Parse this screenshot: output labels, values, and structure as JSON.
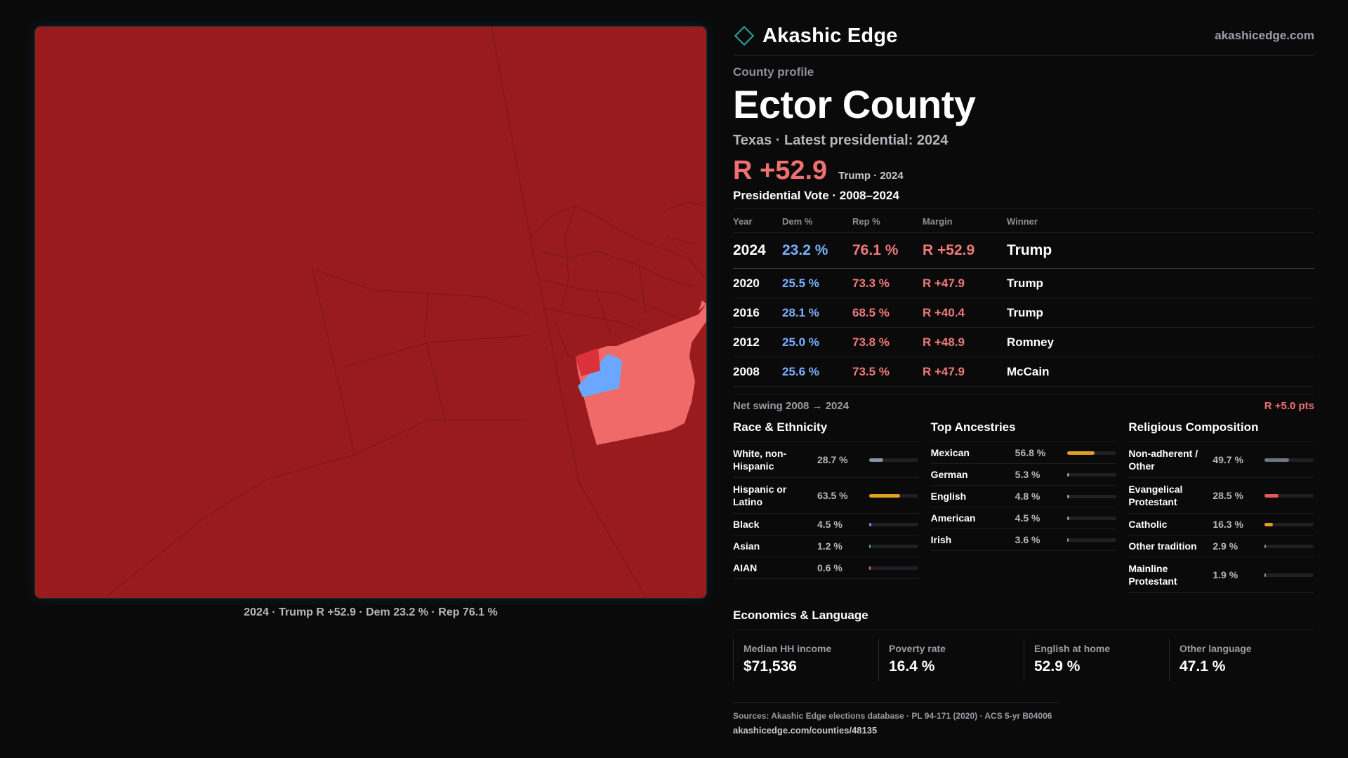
{
  "map": {
    "caption": "2024 · Trump R +52.9 · Dem 23.2 % · Rep 76.1 %",
    "colors": {
      "base": "#9a1b1e",
      "rep_light": "#f06a6a",
      "dem": "#6aa8ff",
      "rep_mid": "#d9323a",
      "boundary": "#7c1518"
    }
  },
  "brand": {
    "name": "Akashic Edge",
    "url": "akashicedge.com",
    "logo_icon": "diamond-icon"
  },
  "profile": {
    "eyebrow": "County profile",
    "title": "Ector County",
    "subline": "Texas · Latest presidential: 2024",
    "headline_margin": "R +52.9",
    "headline_note": "Trump · 2024"
  },
  "votes": {
    "heading": "Presidential Vote · 2008–2024",
    "headers": {
      "year": "Year",
      "dem": "Dem %",
      "rep": "Rep %",
      "margin": "Margin",
      "winner": "Winner"
    },
    "rows": [
      {
        "year": "2024",
        "dem": "23.2 %",
        "rep": "76.1 %",
        "margin": "R +52.9",
        "winner": "Trump"
      },
      {
        "year": "2020",
        "dem": "25.5 %",
        "rep": "73.3 %",
        "margin": "R +47.9",
        "winner": "Trump"
      },
      {
        "year": "2016",
        "dem": "28.1 %",
        "rep": "68.5 %",
        "margin": "R +40.4",
        "winner": "Trump"
      },
      {
        "year": "2012",
        "dem": "25.0 %",
        "rep": "73.8 %",
        "margin": "R +48.9",
        "winner": "Romney"
      },
      {
        "year": "2008",
        "dem": "25.6 %",
        "rep": "73.5 %",
        "margin": "R +47.9",
        "winner": "McCain"
      }
    ]
  },
  "swing": {
    "label": "Net swing 2008 → 2024",
    "value": "R +5.0 pts"
  },
  "race": {
    "title": "Race & Ethnicity",
    "items": [
      {
        "label": "White, non-Hispanic",
        "value": "28.7 %",
        "pct": 28.7,
        "color": "#8a93a6"
      },
      {
        "label": "Hispanic or Latino",
        "value": "63.5 %",
        "pct": 63.5,
        "color": "#e0a020"
      },
      {
        "label": "Black",
        "value": "4.5 %",
        "pct": 4.5,
        "color": "#8a7ee0"
      },
      {
        "label": "Asian",
        "value": "1.2 %",
        "pct": 1.2,
        "color": "#4ab0a8"
      },
      {
        "label": "AIAN",
        "value": "0.6 %",
        "pct": 0.6,
        "color": "#e07a40"
      }
    ]
  },
  "ancestry": {
    "title": "Top Ancestries",
    "items": [
      {
        "label": "Mexican",
        "value": "56.8 %",
        "pct": 56.8,
        "color": "#e0a020"
      },
      {
        "label": "German",
        "value": "5.3 %",
        "pct": 5.3,
        "color": "#8a93a6"
      },
      {
        "label": "English",
        "value": "4.8 %",
        "pct": 4.8,
        "color": "#8a93a6"
      },
      {
        "label": "American",
        "value": "4.5 %",
        "pct": 4.5,
        "color": "#8a93a6"
      },
      {
        "label": "Irish",
        "value": "3.6 %",
        "pct": 3.6,
        "color": "#8a93a6"
      }
    ]
  },
  "religion": {
    "title": "Religious Composition",
    "items": [
      {
        "label": "Non-adherent / Other",
        "value": "49.7 %",
        "pct": 49.7,
        "color": "#6e7686"
      },
      {
        "label": "Evangelical Protestant",
        "value": "28.5 %",
        "pct": 28.5,
        "color": "#e05a5a"
      },
      {
        "label": "Catholic",
        "value": "16.3 %",
        "pct": 16.3,
        "color": "#e0a020"
      },
      {
        "label": "Other tradition",
        "value": "2.9 %",
        "pct": 2.9,
        "color": "#8a93a6"
      },
      {
        "label": "Mainline Protestant",
        "value": "1.9 %",
        "pct": 1.9,
        "color": "#8a93a6"
      }
    ]
  },
  "economics": {
    "title": "Economics & Language",
    "cells": [
      {
        "label": "Median HH income",
        "value": "$71,536"
      },
      {
        "label": "Poverty rate",
        "value": "16.4 %"
      },
      {
        "label": "English at home",
        "value": "52.9 %"
      },
      {
        "label": "Other language",
        "value": "47.1 %"
      }
    ]
  },
  "sources": {
    "line": "Sources: Akashic Edge elections database · PL 94-171 (2020) · ACS 5-yr B04006",
    "url": "akashicedge.com/counties/48135"
  }
}
